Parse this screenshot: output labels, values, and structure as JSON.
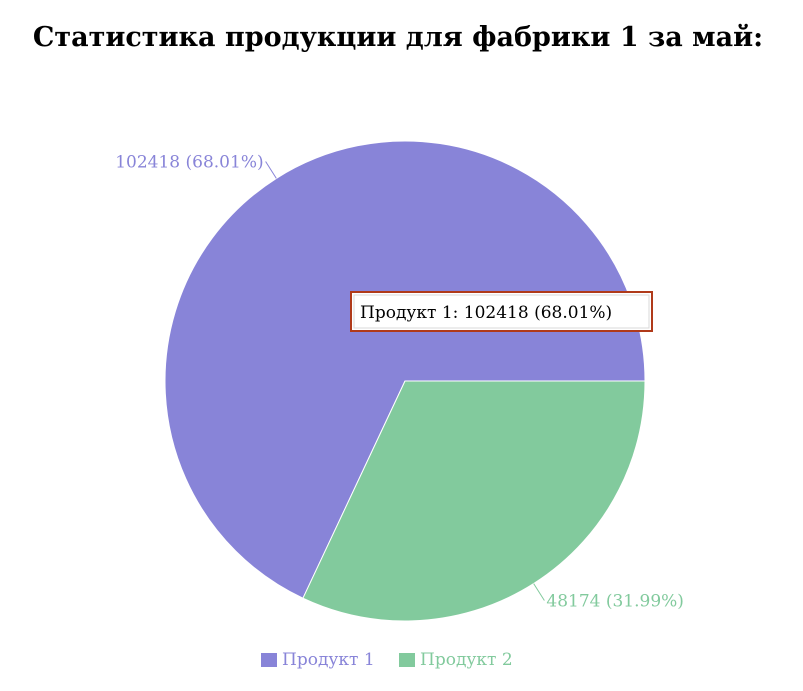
{
  "chart_data": {
    "type": "pie",
    "title": "Статистика продукции для фабрики 1 за май:",
    "categories": [
      "Продукт 1",
      "Продукт 2"
    ],
    "values": [
      102418,
      48174
    ],
    "percentages": [
      "68.01%",
      "31.99%"
    ],
    "slice_labels": [
      "102418 (68.01%)",
      "48174 (31.99%)"
    ],
    "colors": [
      "#8884d8",
      "#82ca9d"
    ],
    "legend": {
      "position": "bottom",
      "entries": [
        "Продукт 1",
        "Продукт 2"
      ]
    },
    "tooltip": {
      "text": "Продукт 1: 102418 (68.01%)",
      "border_color": "#b03a1a"
    }
  }
}
